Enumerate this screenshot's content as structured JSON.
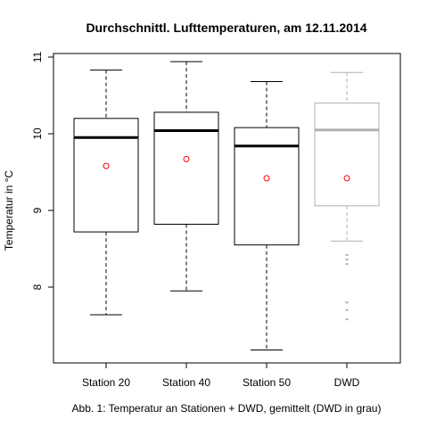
{
  "chart_data": {
    "type": "boxplot",
    "title": "Durchschnittl. Lufttemperaturen, am 12.11.2014",
    "ylabel": "Temperatur in °C",
    "xlabel": "",
    "caption": "Abb. 1: Temperatur an Stationen + DWD, gemittelt (DWD in grau)",
    "ylim": [
      7.0,
      11.1
    ],
    "yticks": [
      8,
      9,
      10,
      11
    ],
    "categories": [
      "Station 20",
      "Station 40",
      "Station 50",
      "DWD"
    ],
    "colors": {
      "box": "#000000",
      "dwd": "#b0b0b0",
      "mean": "#ff0000"
    },
    "boxes": [
      {
        "name": "Station 20",
        "whisker_low": 7.64,
        "q1": 8.72,
        "median": 9.95,
        "q3": 10.2,
        "whisker_high": 10.83,
        "mean": 9.58,
        "outliers": []
      },
      {
        "name": "Station 40",
        "whisker_low": 7.95,
        "q1": 8.82,
        "median": 10.04,
        "q3": 10.28,
        "whisker_high": 10.94,
        "mean": 9.67,
        "outliers": []
      },
      {
        "name": "Station 50",
        "whisker_low": 7.18,
        "q1": 8.55,
        "median": 9.84,
        "q3": 10.08,
        "whisker_high": 10.68,
        "mean": 9.42,
        "outliers": []
      },
      {
        "name": "DWD",
        "whisker_low": 8.6,
        "q1": 9.06,
        "median": 10.05,
        "q3": 10.4,
        "whisker_high": 10.8,
        "mean": 9.42,
        "outliers": [
          8.42,
          8.36,
          8.3,
          7.8,
          7.7,
          7.58
        ]
      }
    ]
  }
}
